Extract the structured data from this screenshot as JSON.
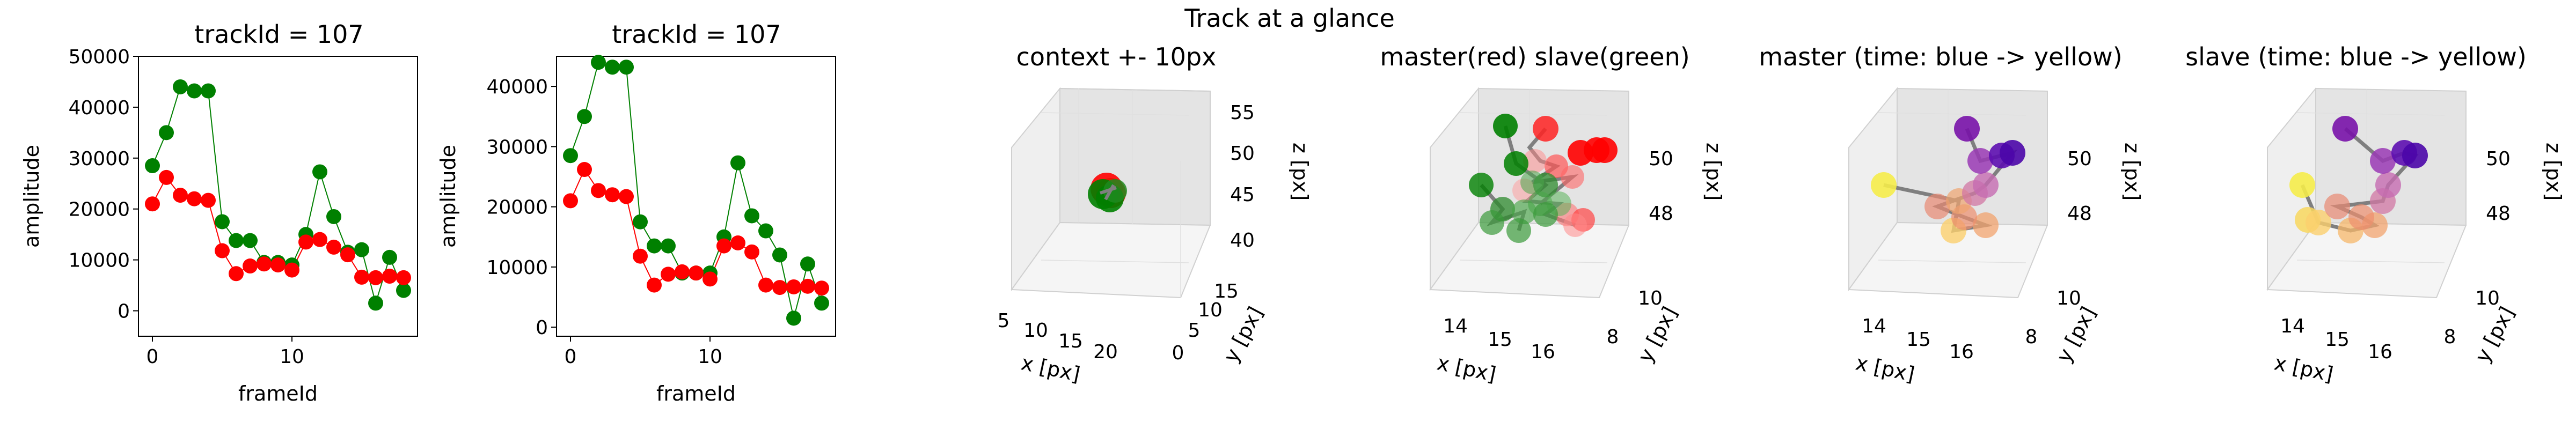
{
  "figure": {
    "suptitle": "Track at a glance"
  },
  "colors": {
    "master": "#ff0000",
    "slave": "#008000",
    "line": "#7f7f7f"
  },
  "chart_data": [
    {
      "type": "line",
      "title": "trackId = 107",
      "xlabel": "frameId",
      "ylabel": "amplitude",
      "xlim": [
        -1,
        19
      ],
      "ylim": [
        -5000,
        50000
      ],
      "xticks": [
        0,
        10
      ],
      "yticks": [
        0,
        10000,
        20000,
        30000,
        40000,
        50000
      ],
      "x": [
        0,
        1,
        2,
        3,
        4,
        5,
        6,
        7,
        8,
        9,
        10,
        11,
        12,
        13,
        14,
        15,
        16,
        17,
        18
      ],
      "series": [
        {
          "color": "#008000",
          "values": [
            28500,
            35000,
            44000,
            43200,
            43200,
            17500,
            13800,
            13800,
            9500,
            9500,
            9000,
            15000,
            27300,
            18500,
            11500,
            12000,
            1500,
            10500,
            4000
          ]
        },
        {
          "color": "#ff0000",
          "values": [
            21000,
            26200,
            22700,
            22000,
            21700,
            11800,
            7300,
            8800,
            9200,
            9000,
            8000,
            13500,
            14000,
            12500,
            11000,
            6600,
            6500,
            6800,
            6500
          ]
        }
      ]
    },
    {
      "type": "line",
      "title": "trackId = 107",
      "xlabel": "frameId",
      "ylabel": "amplitude",
      "xlim": [
        -1,
        19
      ],
      "ylim": [
        -1500,
        45000
      ],
      "xticks": [
        0,
        10
      ],
      "yticks": [
        0,
        10000,
        20000,
        30000,
        40000
      ],
      "x": [
        0,
        1,
        2,
        3,
        4,
        5,
        6,
        7,
        8,
        9,
        10,
        11,
        12,
        13,
        14,
        15,
        16,
        17,
        18
      ],
      "series": [
        {
          "color": "#008000",
          "values": [
            28500,
            35000,
            44000,
            43200,
            43200,
            17500,
            13500,
            13500,
            9000,
            9000,
            9000,
            15000,
            27300,
            18500,
            16000,
            12000,
            1500,
            10500,
            4000
          ]
        },
        {
          "color": "#ff0000",
          "values": [
            21000,
            26200,
            22700,
            22000,
            21700,
            11800,
            7000,
            8800,
            9200,
            9000,
            8000,
            13500,
            14000,
            12500,
            7000,
            6600,
            6700,
            6800,
            6500
          ]
        }
      ]
    },
    {
      "type": "scatter3d",
      "title": "context +- 10px",
      "xlabel": "x [px]",
      "ylabel": "y [px]",
      "zlabel": "z [px]",
      "xticks": [
        "5",
        "10",
        "15",
        "20"
      ],
      "yticks": [
        "0",
        "5",
        "10",
        "15"
      ],
      "zticks": [
        "40",
        "45",
        "50",
        "55"
      ]
    },
    {
      "type": "scatter3d",
      "title": "master(red) slave(green)",
      "xlabel": "x [px]",
      "ylabel": "y [px]",
      "zlabel": "z [px]",
      "xticks": [
        "14",
        "15",
        "16"
      ],
      "yticks": [
        "8",
        "10"
      ],
      "zticks": [
        "48",
        "50"
      ]
    },
    {
      "type": "scatter3d",
      "title": "master (time: blue -> yellow)",
      "xlabel": "x [px]",
      "ylabel": "y [px]",
      "zlabel": "z [px]",
      "xticks": [
        "14",
        "15",
        "16"
      ],
      "yticks": [
        "8",
        "10"
      ],
      "zticks": [
        "48",
        "50"
      ]
    },
    {
      "type": "scatter3d",
      "title": "slave (time: blue -> yellow)",
      "xlabel": "x [px]",
      "ylabel": "y [px]",
      "zlabel": "z [px]",
      "xticks": [
        "14",
        "15",
        "16"
      ],
      "yticks": [
        "8",
        "10"
      ],
      "zticks": [
        "48",
        "50"
      ]
    }
  ]
}
